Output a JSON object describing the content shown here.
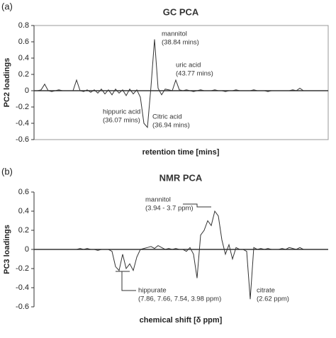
{
  "chart_data": [
    {
      "type": "line",
      "panel_label": "(a)",
      "title": "GC PCA",
      "ylabel": "PC2 loadings",
      "xlabel": "retention time [mins]",
      "color": "#333333",
      "values": [
        0,
        0,
        0.01,
        0.08,
        0,
        -0.01,
        0,
        0.01,
        0,
        0,
        0,
        0,
        0.13,
        0,
        -0.01,
        0.01,
        -0.02,
        0.01,
        -0.03,
        0.02,
        -0.04,
        0.01,
        -0.05,
        0.02,
        -0.03,
        0.01,
        -0.06,
        0.02,
        -0.04,
        0.01,
        -0.08,
        -0.4,
        -0.45,
        0.05,
        0.63,
        0.03,
        -0.05,
        0.02,
        0.01,
        0,
        0.13,
        0.01,
        0,
        0.01,
        0,
        -0.01,
        0,
        0.01,
        0,
        0,
        0,
        0.01,
        0,
        0,
        -0.01,
        0,
        0,
        0.01,
        0,
        0,
        0,
        0,
        0.01,
        0,
        0,
        0,
        -0.01,
        0,
        0,
        0,
        0,
        0,
        0,
        0.01,
        0,
        0.03,
        0,
        0,
        0,
        0,
        0,
        0,
        0,
        0
      ],
      "ylim": [
        -0.6,
        0.8
      ],
      "yticks": [
        0.8,
        0.6,
        0.4,
        0.2,
        0,
        -0.2,
        -0.4,
        -0.6
      ],
      "annotations": [
        "mannitol",
        "(38.84 mins)",
        "uric acid",
        "(43.77 mins)",
        "hippuric acid",
        "(36.07 mins)",
        "Citric acid",
        "(36.94 mins)"
      ]
    },
    {
      "type": "line",
      "panel_label": "(b)",
      "title": "NMR PCA",
      "ylabel": "PC3 loadings",
      "xlabel": "chemical shift [δ ppm]",
      "color": "#333333",
      "values": [
        0,
        0,
        0,
        0,
        0,
        0,
        0,
        0,
        0,
        0,
        0,
        0,
        0,
        0.01,
        0,
        0.01,
        0,
        0,
        -0.01,
        0,
        0,
        0,
        -0.02,
        -0.18,
        -0.22,
        -0.05,
        -0.2,
        -0.15,
        -0.22,
        -0.08,
        0,
        0.01,
        0.02,
        0.03,
        0.01,
        0.04,
        0.02,
        0,
        0.01,
        0,
        0.01,
        0,
        0,
        -0.02,
        0.02,
        -0.05,
        -0.3,
        0.15,
        0.2,
        0.3,
        0.25,
        0.4,
        0.35,
        0.1,
        -0.05,
        0.05,
        -0.1,
        0.02,
        0,
        0,
        -0.02,
        -0.52,
        0.02,
        0,
        0.01,
        0,
        0.01,
        0,
        0,
        0,
        0.01,
        0,
        0.02,
        0.01,
        0,
        0.02,
        0,
        0,
        0,
        0,
        0,
        0,
        0,
        0
      ],
      "ylim": [
        -0.6,
        0.6
      ],
      "yticks": [
        0.6,
        0.4,
        0.2,
        0,
        -0.2,
        -0.4,
        -0.6
      ],
      "annotations": [
        "mannitol",
        "(3.94 - 3.7 ppm)",
        "hippurate",
        "(7.86, 7.66, 7.54, 3.98 ppm)",
        "citrate",
        "(2.62 ppm)"
      ]
    }
  ]
}
